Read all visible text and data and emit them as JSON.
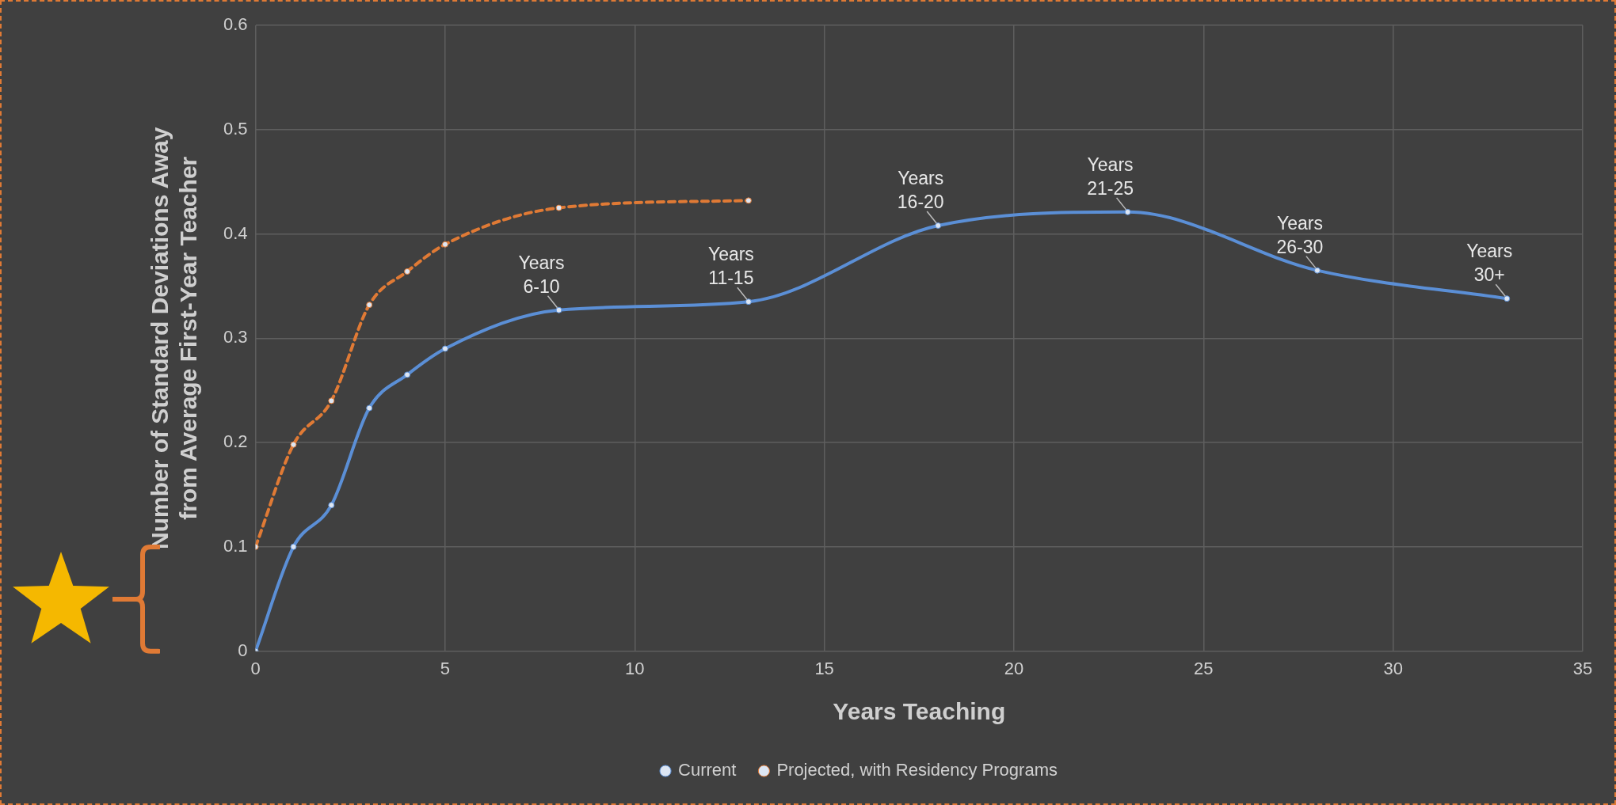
{
  "chart_data": {
    "type": "line",
    "xlabel": "Years Teaching",
    "ylabel": "Number of Standard Deviations Away from Average First-Year Teacher",
    "xlim": [
      0,
      35
    ],
    "xticks": [
      0,
      5,
      10,
      15,
      20,
      25,
      30,
      35
    ],
    "ylim": [
      0,
      0.6
    ],
    "yticks": [
      0,
      0.1,
      0.2,
      0.3,
      0.4,
      0.5,
      0.6
    ],
    "grid": true,
    "legend": "bottom",
    "marker": "circle",
    "series": [
      {
        "name": "Current",
        "color": "#5b8fd6",
        "line_style": "solid",
        "x": [
          0,
          1,
          2,
          3,
          4,
          5,
          8,
          13,
          18,
          23,
          28,
          33
        ],
        "values": [
          0,
          0.1,
          0.14,
          0.233,
          0.265,
          0.29,
          0.327,
          0.335,
          0.408,
          0.421,
          0.365,
          0.338
        ]
      },
      {
        "name": "Projected, with Residency Programs",
        "color": "#e07a35",
        "line_style": "dashed",
        "x": [
          0,
          1,
          2,
          3,
          4,
          5,
          8,
          13
        ],
        "values": [
          0.1,
          0.198,
          0.24,
          0.332,
          0.364,
          0.39,
          0.425,
          0.432
        ]
      }
    ],
    "annotations": [
      {
        "text": "Years 6-10",
        "x": 8,
        "y": 0.327
      },
      {
        "text": "Years 11-15",
        "x": 13,
        "y": 0.335
      },
      {
        "text": "Years 16-20",
        "x": 18,
        "y": 0.408
      },
      {
        "text": "Years 21-25",
        "x": 23,
        "y": 0.421
      },
      {
        "text": "Years 26-30",
        "x": 28,
        "y": 0.365
      },
      {
        "text": "Years 30+",
        "x": 33,
        "y": 0.338
      }
    ]
  }
}
